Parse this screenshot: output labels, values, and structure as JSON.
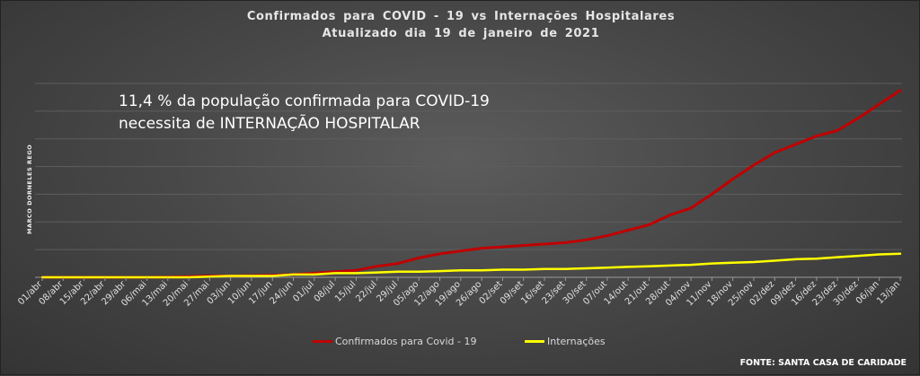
{
  "title_line1": "Confirmados para COVID - 19 vs Internações Hospitalares",
  "title_line2": "Atualizado dia 19 de janeiro de 2021",
  "annotation_line1": "11,4 % da população confirmada para COVID-19",
  "annotation_line2": "necessita de INTERNAÇÃO HOSPITALAR",
  "watermark": "MARCO DORNELES REGO",
  "source": "FONTE: SANTA CASA DE CARIDADE",
  "colors": {
    "confirmed": "#c00000",
    "hospitalizations": "#ffff00",
    "grid": "#5e5e5e",
    "axis": "#9a9a9a"
  },
  "chart_data": {
    "type": "line",
    "xlabel": "",
    "ylabel": "",
    "grid": true,
    "legend_position": "bottom",
    "categories": [
      "01/abr",
      "08/abr",
      "15/abr",
      "22/abr",
      "29/abr",
      "06/mai",
      "13/mai",
      "20/mai",
      "27/mai",
      "03/jun",
      "10/jun",
      "17/jun",
      "24/jun",
      "01/jul",
      "08/jul",
      "15/jul",
      "22/jul",
      "29/jul",
      "05/ago",
      "12/ago",
      "19/ago",
      "26/ago",
      "02/set",
      "09/set",
      "16/set",
      "23/set",
      "30/set",
      "07/out",
      "14/out",
      "21/out",
      "28/out",
      "04/nov",
      "11/nov",
      "18/nov",
      "25/nov",
      "02/dez",
      "09/dez",
      "16/dez",
      "23/dez",
      "30/dez",
      "06/jan",
      "13/jan"
    ],
    "ylim": [
      0,
      140
    ],
    "series": [
      {
        "name": "Confirmados para Covid - 19",
        "values": [
          0,
          0,
          0,
          0,
          0,
          0,
          0.2,
          0.5,
          1,
          1,
          1.2,
          1.5,
          2,
          3,
          4,
          5,
          8,
          10,
          14,
          17,
          19,
          21,
          22,
          23,
          24,
          25,
          27,
          30,
          34,
          38,
          45,
          50,
          60,
          71,
          81,
          90,
          96,
          102,
          106,
          115,
          125,
          135
        ]
      },
      {
        "name": "Internações",
        "values": [
          0,
          0,
          0,
          0,
          0,
          0,
          0,
          0,
          0.5,
          1,
          1,
          1,
          2,
          2,
          3,
          3,
          3.5,
          4,
          4,
          4.5,
          5,
          5,
          5.5,
          5.5,
          6,
          6,
          6.5,
          7,
          7.5,
          8,
          8.5,
          9,
          10,
          10.5,
          11,
          12,
          13,
          13.5,
          14.5,
          15.5,
          16.5,
          17
        ]
      }
    ]
  },
  "chart_data_end_note": ""
}
